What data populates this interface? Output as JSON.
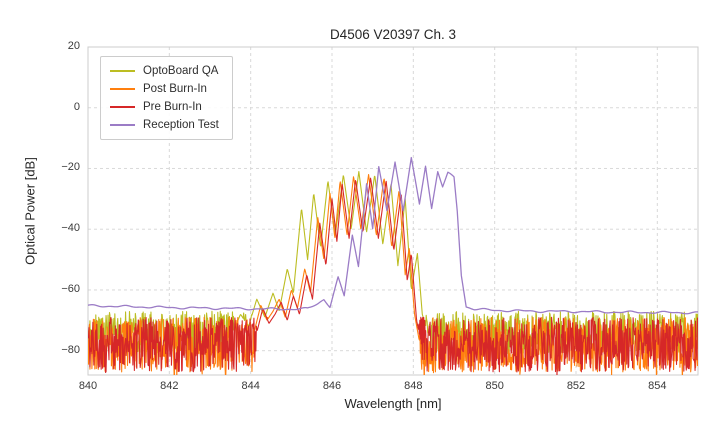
{
  "chart_data": {
    "type": "line",
    "title": "D4506 V20397 Ch. 3",
    "xlabel": "Wavelength [nm]",
    "ylabel": "Optical Power [dB]",
    "xlim": [
      840,
      855
    ],
    "ylim": [
      -88,
      20
    ],
    "xticks": [
      840,
      842,
      844,
      846,
      848,
      850,
      852,
      854
    ],
    "yticks": [
      20,
      0,
      -20,
      -40,
      -60,
      -80
    ],
    "xtick_labels": [
      "840",
      "842",
      "844",
      "846",
      "848",
      "850",
      "852",
      "854"
    ],
    "ytick_labels": [
      "20",
      "0",
      "−20",
      "−40",
      "−60",
      "−80"
    ],
    "grid": true,
    "grid_color": "#d9d9d9",
    "frame_color": "#cccccc",
    "legend_position": "upper-left",
    "series": [
      {
        "name": "OptoBoard QA",
        "color": "#bcbd22",
        "line_width": 1.1,
        "noise_floor": {
          "base": -74,
          "spread": 7,
          "xrange": [
            840,
            855
          ]
        },
        "signal_points": [
          [
            843.5,
            -76
          ],
          [
            843.75,
            -68
          ],
          [
            843.95,
            -72
          ],
          [
            844.15,
            -63
          ],
          [
            844.35,
            -69
          ],
          [
            844.55,
            -61
          ],
          [
            844.7,
            -67
          ],
          [
            844.9,
            -53
          ],
          [
            845.05,
            -61
          ],
          [
            845.25,
            -33
          ],
          [
            845.4,
            -50
          ],
          [
            845.55,
            -28
          ],
          [
            845.72,
            -46
          ],
          [
            845.9,
            -24
          ],
          [
            846.08,
            -42
          ],
          [
            846.28,
            -22
          ],
          [
            846.47,
            -40
          ],
          [
            846.66,
            -21
          ],
          [
            846.85,
            -41
          ],
          [
            847.05,
            -22
          ],
          [
            847.25,
            -45
          ],
          [
            847.45,
            -25
          ],
          [
            847.62,
            -52
          ],
          [
            847.8,
            -30
          ],
          [
            847.95,
            -60
          ],
          [
            848.1,
            -48
          ],
          [
            848.22,
            -68
          ],
          [
            848.4,
            -76
          ]
        ]
      },
      {
        "name": "Post Burn-In",
        "color": "#ff7f0e",
        "line_width": 1.1,
        "noise_floor": {
          "base": -78,
          "spread": 9,
          "xrange": [
            840,
            855
          ]
        },
        "signal_points": [
          [
            844.1,
            -73
          ],
          [
            844.25,
            -65
          ],
          [
            844.4,
            -70
          ],
          [
            844.55,
            -67
          ],
          [
            844.7,
            -63
          ],
          [
            844.85,
            -69
          ],
          [
            845.0,
            -60
          ],
          [
            845.15,
            -66
          ],
          [
            845.33,
            -53
          ],
          [
            845.47,
            -61
          ],
          [
            845.65,
            -36
          ],
          [
            845.8,
            -50
          ],
          [
            845.95,
            -28
          ],
          [
            846.07,
            -43
          ],
          [
            846.2,
            -24
          ],
          [
            846.37,
            -42
          ],
          [
            846.53,
            -22.5
          ],
          [
            846.71,
            -40
          ],
          [
            846.9,
            -22
          ],
          [
            847.09,
            -42
          ],
          [
            847.28,
            -23
          ],
          [
            847.47,
            -46
          ],
          [
            847.65,
            -27
          ],
          [
            847.8,
            -55
          ],
          [
            847.9,
            -46
          ],
          [
            848.03,
            -68
          ],
          [
            848.15,
            -77
          ]
        ]
      },
      {
        "name": "Pre Burn-In",
        "color": "#d62728",
        "line_width": 1.1,
        "noise_floor": {
          "base": -78,
          "spread": 9,
          "xrange": [
            840,
            855
          ]
        },
        "signal_points": [
          [
            844.15,
            -74
          ],
          [
            844.3,
            -66
          ],
          [
            844.45,
            -71
          ],
          [
            844.6,
            -68
          ],
          [
            844.75,
            -64
          ],
          [
            844.9,
            -70
          ],
          [
            845.05,
            -62
          ],
          [
            845.2,
            -68
          ],
          [
            845.38,
            -55
          ],
          [
            845.52,
            -63
          ],
          [
            845.7,
            -38
          ],
          [
            845.85,
            -52
          ],
          [
            846.0,
            -30
          ],
          [
            846.12,
            -44
          ],
          [
            846.25,
            -25
          ],
          [
            846.42,
            -43
          ],
          [
            846.58,
            -23.5
          ],
          [
            846.76,
            -41
          ],
          [
            846.95,
            -23
          ],
          [
            847.14,
            -43
          ],
          [
            847.33,
            -24
          ],
          [
            847.52,
            -47
          ],
          [
            847.7,
            -28
          ],
          [
            847.85,
            -57
          ],
          [
            847.95,
            -48
          ],
          [
            848.08,
            -70
          ],
          [
            848.2,
            -78
          ]
        ]
      },
      {
        "name": "Reception Test",
        "color": "#9b7cc6",
        "line_width": 1.3,
        "smooth": true,
        "ripple": 0.5,
        "signal_points": [
          [
            840.0,
            -65.2
          ],
          [
            840.5,
            -65.3
          ],
          [
            841.0,
            -65.5
          ],
          [
            841.5,
            -65.6
          ],
          [
            842.0,
            -65.8
          ],
          [
            842.5,
            -65.9
          ],
          [
            843.0,
            -66.0
          ],
          [
            843.5,
            -66.1
          ],
          [
            844.0,
            -66.2
          ],
          [
            844.5,
            -66.25
          ],
          [
            845.0,
            -66.3
          ],
          [
            845.4,
            -66.2
          ],
          [
            845.65,
            -64.5
          ],
          [
            845.8,
            -63.0
          ],
          [
            845.95,
            -65.5
          ],
          [
            846.15,
            -56.0
          ],
          [
            846.3,
            -62.0
          ],
          [
            846.5,
            -42.0
          ],
          [
            846.65,
            -52.0
          ],
          [
            846.85,
            -25.0
          ],
          [
            847.0,
            -40.0
          ],
          [
            847.15,
            -19.5
          ],
          [
            847.35,
            -34.0
          ],
          [
            847.55,
            -17.5
          ],
          [
            847.75,
            -34.0
          ],
          [
            847.95,
            -16.5
          ],
          [
            848.15,
            -32.0
          ],
          [
            848.3,
            -19.0
          ],
          [
            848.45,
            -33.0
          ],
          [
            848.6,
            -21.0
          ],
          [
            848.72,
            -26.0
          ],
          [
            848.85,
            -21.5
          ],
          [
            849.0,
            -23.0
          ],
          [
            849.08,
            -34.0
          ],
          [
            849.18,
            -55.0
          ],
          [
            849.3,
            -65.5
          ],
          [
            849.5,
            -66.3
          ],
          [
            850.0,
            -66.7
          ],
          [
            851.0,
            -67.0
          ],
          [
            852.0,
            -67.1
          ],
          [
            853.0,
            -67.3
          ],
          [
            854.0,
            -67.4
          ],
          [
            855.0,
            -67.5
          ]
        ]
      }
    ]
  }
}
